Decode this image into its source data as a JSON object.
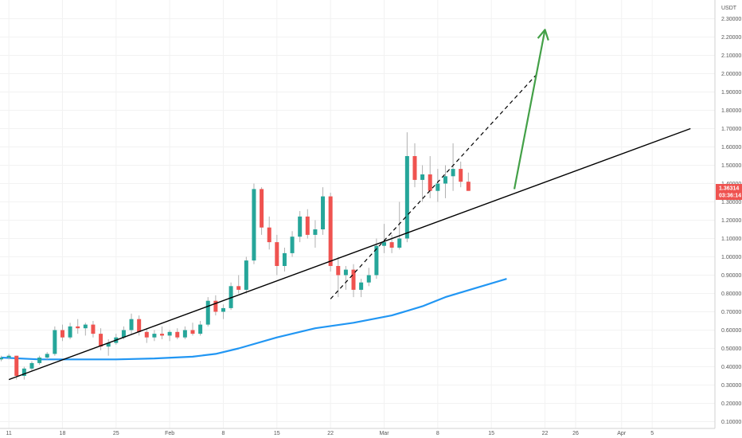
{
  "chart_data": {
    "type": "candlestick",
    "currency": "USDT",
    "ylim": [
      0.0,
      2.35
    ],
    "y_ticks": [
      0.1,
      0.2,
      0.3,
      0.4,
      0.5,
      0.6,
      0.7,
      0.8,
      0.9,
      1.0,
      1.1,
      1.2,
      1.3,
      1.4,
      1.5,
      1.6,
      1.7,
      1.8,
      1.9,
      2.0,
      2.1,
      2.2,
      2.3
    ],
    "y_tick_labels": [
      "0.10000",
      "0.20000",
      "0.30000",
      "0.40000",
      "0.50000",
      "0.60000",
      "0.70000",
      "0.80000",
      "0.90000",
      "1.00000",
      "1.10000",
      "1.20000",
      "1.30000",
      "1.40000",
      "1.50000",
      "1.60000",
      "1.70000",
      "1.80000",
      "1.90000",
      "2.00000",
      "2.10000",
      "2.20000",
      "2.30000"
    ],
    "x_start_date": "Jan 10",
    "x_ticks": [
      {
        "day": 1,
        "label": "11"
      },
      {
        "day": 8,
        "label": "18"
      },
      {
        "day": 15,
        "label": "25"
      },
      {
        "day": 22,
        "label": "Feb"
      },
      {
        "day": 29,
        "label": "8"
      },
      {
        "day": 36,
        "label": "15"
      },
      {
        "day": 43,
        "label": "22"
      },
      {
        "day": 50,
        "label": "Mar"
      },
      {
        "day": 57,
        "label": "8"
      },
      {
        "day": 64,
        "label": "15"
      },
      {
        "day": 71,
        "label": "22"
      },
      {
        "day": 75,
        "label": "26"
      },
      {
        "day": 81,
        "label": "Apr"
      },
      {
        "day": 85,
        "label": "5"
      }
    ],
    "current_price": {
      "value": 1.36314,
      "label": "1.36314",
      "timer": "03:36:14",
      "color": "#ef5350"
    },
    "candles": [
      [
        0.44,
        0.46,
        0.43,
        0.45
      ],
      [
        0.45,
        0.47,
        0.44,
        0.46
      ],
      [
        0.46,
        0.46,
        0.33,
        0.35
      ],
      [
        0.35,
        0.4,
        0.33,
        0.39
      ],
      [
        0.39,
        0.43,
        0.38,
        0.42
      ],
      [
        0.42,
        0.46,
        0.41,
        0.45
      ],
      [
        0.45,
        0.48,
        0.44,
        0.47
      ],
      [
        0.47,
        0.62,
        0.46,
        0.6
      ],
      [
        0.6,
        0.63,
        0.54,
        0.56
      ],
      [
        0.56,
        0.64,
        0.55,
        0.62
      ],
      [
        0.62,
        0.66,
        0.58,
        0.61
      ],
      [
        0.61,
        0.64,
        0.57,
        0.63
      ],
      [
        0.63,
        0.65,
        0.56,
        0.58
      ],
      [
        0.58,
        0.61,
        0.49,
        0.51
      ],
      [
        0.51,
        0.55,
        0.46,
        0.53
      ],
      [
        0.53,
        0.58,
        0.52,
        0.56
      ],
      [
        0.56,
        0.62,
        0.55,
        0.6
      ],
      [
        0.6,
        0.69,
        0.58,
        0.66
      ],
      [
        0.66,
        0.68,
        0.57,
        0.59
      ],
      [
        0.59,
        0.61,
        0.53,
        0.56
      ],
      [
        0.56,
        0.6,
        0.54,
        0.58
      ],
      [
        0.58,
        0.62,
        0.55,
        0.57
      ],
      [
        0.57,
        0.6,
        0.54,
        0.59
      ],
      [
        0.59,
        0.61,
        0.55,
        0.56
      ],
      [
        0.56,
        0.62,
        0.55,
        0.6
      ],
      [
        0.6,
        0.64,
        0.57,
        0.58
      ],
      [
        0.58,
        0.65,
        0.57,
        0.63
      ],
      [
        0.63,
        0.78,
        0.62,
        0.76
      ],
      [
        0.76,
        0.79,
        0.68,
        0.7
      ],
      [
        0.7,
        0.74,
        0.66,
        0.72
      ],
      [
        0.72,
        0.86,
        0.71,
        0.84
      ],
      [
        0.84,
        0.9,
        0.8,
        0.82
      ],
      [
        0.82,
        1.0,
        0.8,
        0.98
      ],
      [
        0.98,
        1.4,
        0.96,
        1.37
      ],
      [
        1.37,
        1.38,
        1.12,
        1.16
      ],
      [
        1.16,
        1.22,
        1.04,
        1.08
      ],
      [
        1.08,
        1.12,
        0.9,
        0.95
      ],
      [
        0.95,
        1.05,
        0.92,
        1.02
      ],
      [
        1.02,
        1.14,
        1.0,
        1.11
      ],
      [
        1.11,
        1.25,
        1.08,
        1.22
      ],
      [
        1.22,
        1.26,
        1.1,
        1.12
      ],
      [
        1.12,
        1.2,
        1.05,
        1.15
      ],
      [
        1.15,
        1.38,
        1.12,
        1.33
      ],
      [
        1.33,
        1.35,
        0.92,
        0.95
      ],
      [
        0.95,
        1.0,
        0.78,
        0.9
      ],
      [
        0.9,
        0.95,
        0.82,
        0.93
      ],
      [
        0.93,
        0.96,
        0.78,
        0.82
      ],
      [
        0.82,
        0.88,
        0.78,
        0.86
      ],
      [
        0.86,
        0.94,
        0.84,
        0.9
      ],
      [
        0.9,
        1.1,
        0.88,
        1.06
      ],
      [
        1.06,
        1.18,
        1.02,
        1.08
      ],
      [
        1.08,
        1.12,
        1.02,
        1.05
      ],
      [
        1.05,
        1.3,
        1.04,
        1.1
      ],
      [
        1.1,
        1.68,
        1.08,
        1.55
      ],
      [
        1.55,
        1.62,
        1.38,
        1.42
      ],
      [
        1.42,
        1.5,
        1.3,
        1.45
      ],
      [
        1.45,
        1.55,
        1.32,
        1.36
      ],
      [
        1.36,
        1.48,
        1.3,
        1.4
      ],
      [
        1.4,
        1.5,
        1.32,
        1.44
      ],
      [
        1.44,
        1.62,
        1.36,
        1.48
      ],
      [
        1.48,
        1.52,
        1.38,
        1.41
      ],
      [
        1.41,
        1.46,
        1.36,
        1.36
      ]
    ],
    "ma_line": {
      "color": "#2196f3",
      "points": [
        [
          0,
          0.45
        ],
        [
          5,
          0.44
        ],
        [
          10,
          0.44
        ],
        [
          15,
          0.44
        ],
        [
          20,
          0.445
        ],
        [
          25,
          0.455
        ],
        [
          28,
          0.47
        ],
        [
          31,
          0.5
        ],
        [
          36,
          0.56
        ],
        [
          41,
          0.61
        ],
        [
          46,
          0.64
        ],
        [
          51,
          0.68
        ],
        [
          55,
          0.73
        ],
        [
          58,
          0.78
        ],
        [
          62,
          0.83
        ],
        [
          66,
          0.88
        ]
      ]
    },
    "trend_line": {
      "color": "#000000",
      "points": [
        [
          1,
          0.33
        ],
        [
          90,
          1.7
        ]
      ]
    },
    "channel_line": {
      "color": "#000000",
      "dashed": true,
      "points": [
        [
          43,
          0.77
        ],
        [
          70,
          2.0
        ]
      ]
    },
    "projection_arrow": {
      "color": "#43a047",
      "points": [
        [
          67,
          1.37
        ],
        [
          71,
          2.24
        ]
      ]
    }
  }
}
